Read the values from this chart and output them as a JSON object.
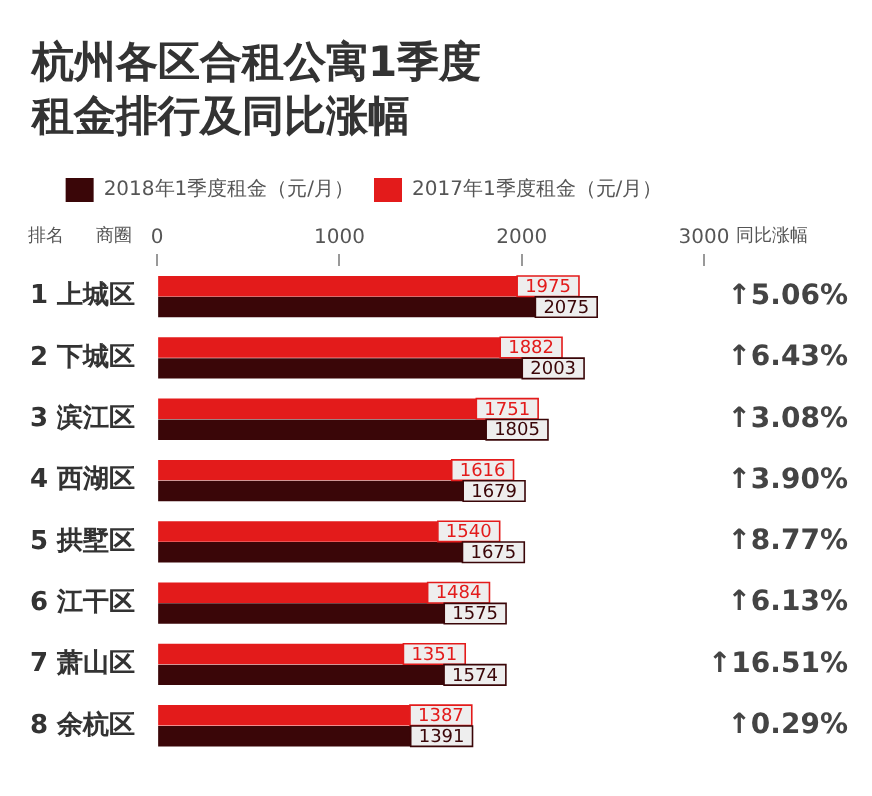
{
  "chart_data": {
    "type": "bar",
    "orientation": "horizontal",
    "title": "杭州各区合租公寓1季度租金排行及同比涨幅",
    "categories": [
      "1 上城区",
      "2 下城区",
      "3 滨江区",
      "4 西湖区",
      "5 拱墅区",
      "6 江干区",
      "7 萧山区",
      "8 余杭区"
    ],
    "series": [
      {
        "name": "2018年1季度租金（元/月）",
        "color": "#3a0608",
        "values": [
          2075,
          2003,
          1805,
          1679,
          1675,
          1575,
          1574,
          1391
        ]
      },
      {
        "name": "2017年1季度租金（元/月）",
        "color": "#e31b1b",
        "values": [
          1975,
          1882,
          1751,
          1616,
          1540,
          1484,
          1351,
          1387
        ]
      }
    ],
    "xlim": [
      0,
      3000
    ],
    "xticks": [
      0,
      1000,
      2000,
      3000
    ],
    "grid": false,
    "legend": "top",
    "data_labels": true,
    "annotations": [
      "排名",
      "商圈",
      "同比涨幅",
      "↑5.06%",
      "↑6.43%",
      "↑3.08%",
      "↑3.90%",
      "↑8.77%",
      "↑6.13%",
      "↑16.51%",
      "↑0.29%"
    ]
  }
}
